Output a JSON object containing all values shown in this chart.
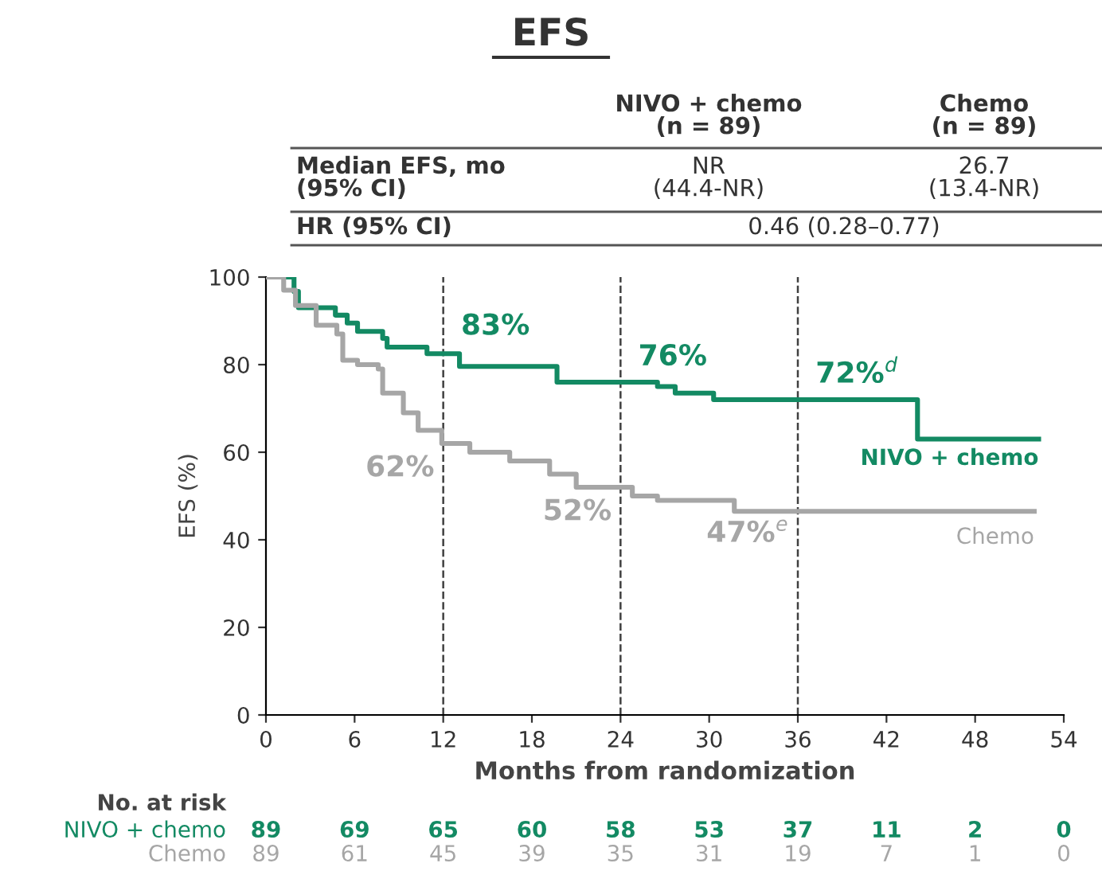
{
  "chart_data": {
    "type": "step",
    "title": "EFS",
    "xlabel": "Months from randomization",
    "ylabel": "EFS (%)",
    "xlim": [
      0,
      54
    ],
    "xticks": [
      0,
      6,
      12,
      18,
      24,
      30,
      36,
      42,
      48,
      54
    ],
    "ylim": [
      0,
      100
    ],
    "yticks": [
      0,
      20,
      40,
      60,
      80,
      100
    ],
    "grid": false,
    "series": [
      {
        "name": "NIVO + chemo",
        "color": "#138a63",
        "x": [
          0,
          1.9,
          2.2,
          2.6,
          4.7,
          5.5,
          6.2,
          7.9,
          8.2,
          10.9,
          13.1,
          19.7,
          26.5,
          27.7,
          30.3,
          44.1,
          52.3
        ],
        "values": [
          100,
          96.7,
          93,
          93,
          91.3,
          89.5,
          87.6,
          86,
          84,
          82.5,
          79.6,
          76,
          75,
          73.5,
          72,
          63,
          63
        ]
      },
      {
        "name": "Chemo",
        "color": "#a6a6a6",
        "x": [
          0,
          1.2,
          2,
          3.4,
          4.8,
          5.2,
          6.2,
          7.6,
          7.9,
          9.3,
          10.3,
          11.9,
          13.8,
          16.5,
          19.2,
          21,
          24.8,
          26.5,
          31.7,
          52
        ],
        "values": [
          100,
          97,
          93.5,
          89,
          87,
          81,
          80,
          79,
          73.5,
          69,
          65,
          62,
          60,
          58,
          55,
          52,
          50,
          49,
          46.5,
          46.5
        ]
      }
    ],
    "ref_lines": [
      {
        "axis": "x",
        "value": 12,
        "color": "#404040",
        "line_style": "dashed"
      },
      {
        "axis": "x",
        "value": 24,
        "color": "#404040",
        "line_style": "dashed"
      },
      {
        "axis": "x",
        "value": 36,
        "color": "#404040",
        "line_style": "dashed"
      }
    ],
    "annotations": [
      "NIVO + chemo\n(n = 89)",
      "Chemo\n(n = 89)",
      "Median EFS, mo\n(95% CI)",
      "NR\n(44.4-NR)",
      "26.7\n(13.4-NR)",
      "HR (95% CI)",
      "0.46 (0.28–0.77)",
      "No. at risk",
      "NIVO + chemo",
      "Chemo",
      "89",
      "69",
      "65",
      "60",
      "58",
      "53",
      "37",
      "11",
      "2",
      "0",
      "89",
      "61",
      "45",
      "39",
      "35",
      "31",
      "19",
      "7",
      "1",
      "0",
      {
        "text": "83%",
        "x": 12,
        "y": 83
      },
      {
        "text": "76%",
        "x": 24,
        "y": 76
      },
      {
        "text": "72%$^{d}$",
        "x": 36,
        "y": 72
      },
      {
        "text": "62%",
        "x": 12,
        "y": 62
      },
      {
        "text": "52%",
        "x": 24,
        "y": 52
      },
      {
        "text": "47%$^{e}$",
        "x": 36,
        "y": 47
      }
    ]
  }
}
